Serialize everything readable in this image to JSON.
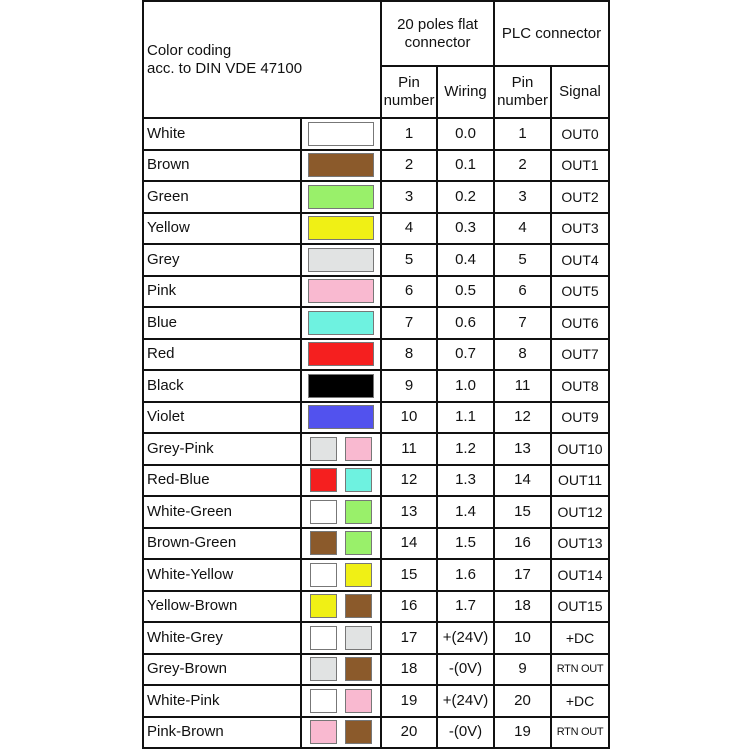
{
  "header": {
    "color_coding": "Color coding",
    "standard": "acc. to DIN VDE 47100",
    "flat_connector": "20 poles flat connector",
    "plc_connector": "PLC connector",
    "pin_number": "Pin number",
    "wiring": "Wiring",
    "pin_number_plc": "Pin number",
    "signal": "Signal"
  },
  "colors": {
    "White": "#ffffff",
    "Brown": "#8b5a2b",
    "Green": "#99f06a",
    "Yellow": "#f0f015",
    "Grey": "#e1e3e3",
    "Pink": "#f9b9d0",
    "Blue": "#6ef2e0",
    "Red": "#f51f1f",
    "Black": "#000000",
    "Violet": "#5252ee"
  },
  "rows": [
    {
      "name": "White",
      "swatches": [
        "White"
      ],
      "pin": "1",
      "wiring": "0.0",
      "plc_pin": "1",
      "signal": "OUT0"
    },
    {
      "name": "Brown",
      "swatches": [
        "Brown"
      ],
      "pin": "2",
      "wiring": "0.1",
      "plc_pin": "2",
      "signal": "OUT1"
    },
    {
      "name": "Green",
      "swatches": [
        "Green"
      ],
      "pin": "3",
      "wiring": "0.2",
      "plc_pin": "3",
      "signal": "OUT2"
    },
    {
      "name": "Yellow",
      "swatches": [
        "Yellow"
      ],
      "pin": "4",
      "wiring": "0.3",
      "plc_pin": "4",
      "signal": "OUT3"
    },
    {
      "name": "Grey",
      "swatches": [
        "Grey"
      ],
      "pin": "5",
      "wiring": "0.4",
      "plc_pin": "5",
      "signal": "OUT4"
    },
    {
      "name": "Pink",
      "swatches": [
        "Pink"
      ],
      "pin": "6",
      "wiring": "0.5",
      "plc_pin": "6",
      "signal": "OUT5"
    },
    {
      "name": "Blue",
      "swatches": [
        "Blue"
      ],
      "pin": "7",
      "wiring": "0.6",
      "plc_pin": "7",
      "signal": "OUT6"
    },
    {
      "name": "Red",
      "swatches": [
        "Red"
      ],
      "pin": "8",
      "wiring": "0.7",
      "plc_pin": "8",
      "signal": "OUT7"
    },
    {
      "name": "Black",
      "swatches": [
        "Black"
      ],
      "pin": "9",
      "wiring": "1.0",
      "plc_pin": "11",
      "signal": "OUT8"
    },
    {
      "name": "Violet",
      "swatches": [
        "Violet"
      ],
      "pin": "10",
      "wiring": "1.1",
      "plc_pin": "12",
      "signal": "OUT9"
    },
    {
      "name": "Grey-Pink",
      "swatches": [
        "Grey",
        "Pink"
      ],
      "pin": "11",
      "wiring": "1.2",
      "plc_pin": "13",
      "signal": "OUT10"
    },
    {
      "name": "Red-Blue",
      "swatches": [
        "Red",
        "Blue"
      ],
      "pin": "12",
      "wiring": "1.3",
      "plc_pin": "14",
      "signal": "OUT11"
    },
    {
      "name": "White-Green",
      "swatches": [
        "White",
        "Green"
      ],
      "pin": "13",
      "wiring": "1.4",
      "plc_pin": "15",
      "signal": "OUT12"
    },
    {
      "name": "Brown-Green",
      "swatches": [
        "Brown",
        "Green"
      ],
      "pin": "14",
      "wiring": "1.5",
      "plc_pin": "16",
      "signal": "OUT13"
    },
    {
      "name": "White-Yellow",
      "swatches": [
        "White",
        "Yellow"
      ],
      "pin": "15",
      "wiring": "1.6",
      "plc_pin": "17",
      "signal": "OUT14"
    },
    {
      "name": "Yellow-Brown",
      "swatches": [
        "Yellow",
        "Brown"
      ],
      "pin": "16",
      "wiring": "1.7",
      "plc_pin": "18",
      "signal": "OUT15"
    },
    {
      "name": "White-Grey",
      "swatches": [
        "White",
        "Grey"
      ],
      "pin": "17",
      "wiring": "+(24V)",
      "plc_pin": "10",
      "signal": "+DC"
    },
    {
      "name": "Grey-Brown",
      "swatches": [
        "Grey",
        "Brown"
      ],
      "pin": "18",
      "wiring": "-(0V)",
      "plc_pin": "9",
      "signal": "RTN OUT"
    },
    {
      "name": "White-Pink",
      "swatches": [
        "White",
        "Pink"
      ],
      "pin": "19",
      "wiring": "+(24V)",
      "plc_pin": "20",
      "signal": "+DC"
    },
    {
      "name": "Pink-Brown",
      "swatches": [
        "Pink",
        "Brown"
      ],
      "pin": "20",
      "wiring": "-(0V)",
      "plc_pin": "19",
      "signal": "RTN OUT"
    }
  ]
}
